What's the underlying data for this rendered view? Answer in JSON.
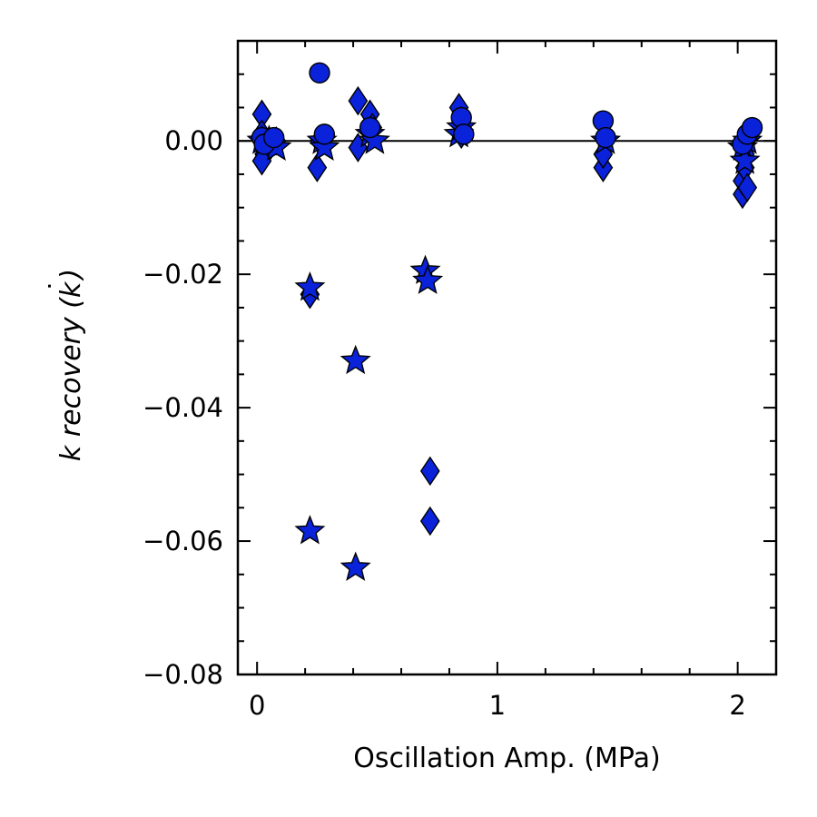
{
  "chart_data": {
    "type": "scatter",
    "xlabel": "Oscillation Amp. (MPa)",
    "ylabel_parts": {
      "k_symbol": "k",
      "word": " recovery (",
      "kdot_symbol": "k",
      "dot": "˙",
      "close": ")"
    },
    "xlim": [
      -0.08,
      2.16
    ],
    "ylim": [
      -0.08,
      0.015
    ],
    "x_ticks": [
      0,
      1,
      2
    ],
    "x_tick_labels": [
      "0",
      "1",
      "2"
    ],
    "y_ticks": [
      -0.08,
      -0.06,
      -0.04,
      -0.02,
      0.0
    ],
    "y_tick_labels": [
      "−0.08",
      "−0.06",
      "−0.04",
      "−0.02",
      "0.00"
    ],
    "zero_line": true,
    "grid": false,
    "marker_color": "#0a22d9",
    "edge_color": "#000000",
    "series": [
      {
        "marker": "diamond",
        "points": [
          [
            0.02,
            0.004
          ],
          [
            0.02,
            0.001
          ],
          [
            0.03,
            -0.002
          ],
          [
            0.05,
            -0.001
          ],
          [
            0.08,
            0.0
          ],
          [
            0.02,
            -0.003
          ],
          [
            0.22,
            -0.023
          ],
          [
            0.25,
            -0.004
          ],
          [
            0.26,
            0.0
          ],
          [
            0.42,
            0.006
          ],
          [
            0.42,
            -0.001
          ],
          [
            0.47,
            0.004
          ],
          [
            0.48,
            0.002
          ],
          [
            0.72,
            -0.0495
          ],
          [
            0.72,
            -0.057
          ],
          [
            0.84,
            0.005
          ],
          [
            0.85,
            0.003
          ],
          [
            0.85,
            0.001
          ],
          [
            1.44,
            -0.004
          ],
          [
            1.44,
            -0.002
          ],
          [
            2.02,
            -0.008
          ],
          [
            2.02,
            -0.006
          ],
          [
            2.03,
            -0.004
          ],
          [
            2.04,
            -0.007
          ],
          [
            2.03,
            -0.002
          ]
        ]
      },
      {
        "marker": "star",
        "points": [
          [
            0.02,
            0.0
          ],
          [
            0.05,
            0.0
          ],
          [
            0.08,
            -0.001
          ],
          [
            0.22,
            -0.022
          ],
          [
            0.22,
            -0.0585
          ],
          [
            0.27,
            0.0
          ],
          [
            0.28,
            -0.001
          ],
          [
            0.41,
            -0.033
          ],
          [
            0.41,
            -0.064
          ],
          [
            0.47,
            0.001
          ],
          [
            0.49,
            0.0
          ],
          [
            0.7,
            -0.0195
          ],
          [
            0.71,
            -0.021
          ],
          [
            0.84,
            0.001
          ],
          [
            0.85,
            0.002
          ],
          [
            1.45,
            0.0
          ],
          [
            2.02,
            -0.001
          ],
          [
            2.03,
            -0.003
          ],
          [
            2.04,
            0.0
          ]
        ]
      },
      {
        "marker": "circle",
        "points": [
          [
            0.02,
            0.0005
          ],
          [
            0.03,
            -0.0005
          ],
          [
            0.07,
            0.0005
          ],
          [
            0.26,
            0.0102
          ],
          [
            0.28,
            0.001
          ],
          [
            0.47,
            0.002
          ],
          [
            0.85,
            0.0035
          ],
          [
            0.86,
            0.001
          ],
          [
            1.44,
            0.003
          ],
          [
            1.45,
            0.0005
          ],
          [
            2.02,
            -0.0005
          ],
          [
            2.04,
            0.001
          ],
          [
            2.06,
            0.002
          ]
        ]
      }
    ]
  }
}
